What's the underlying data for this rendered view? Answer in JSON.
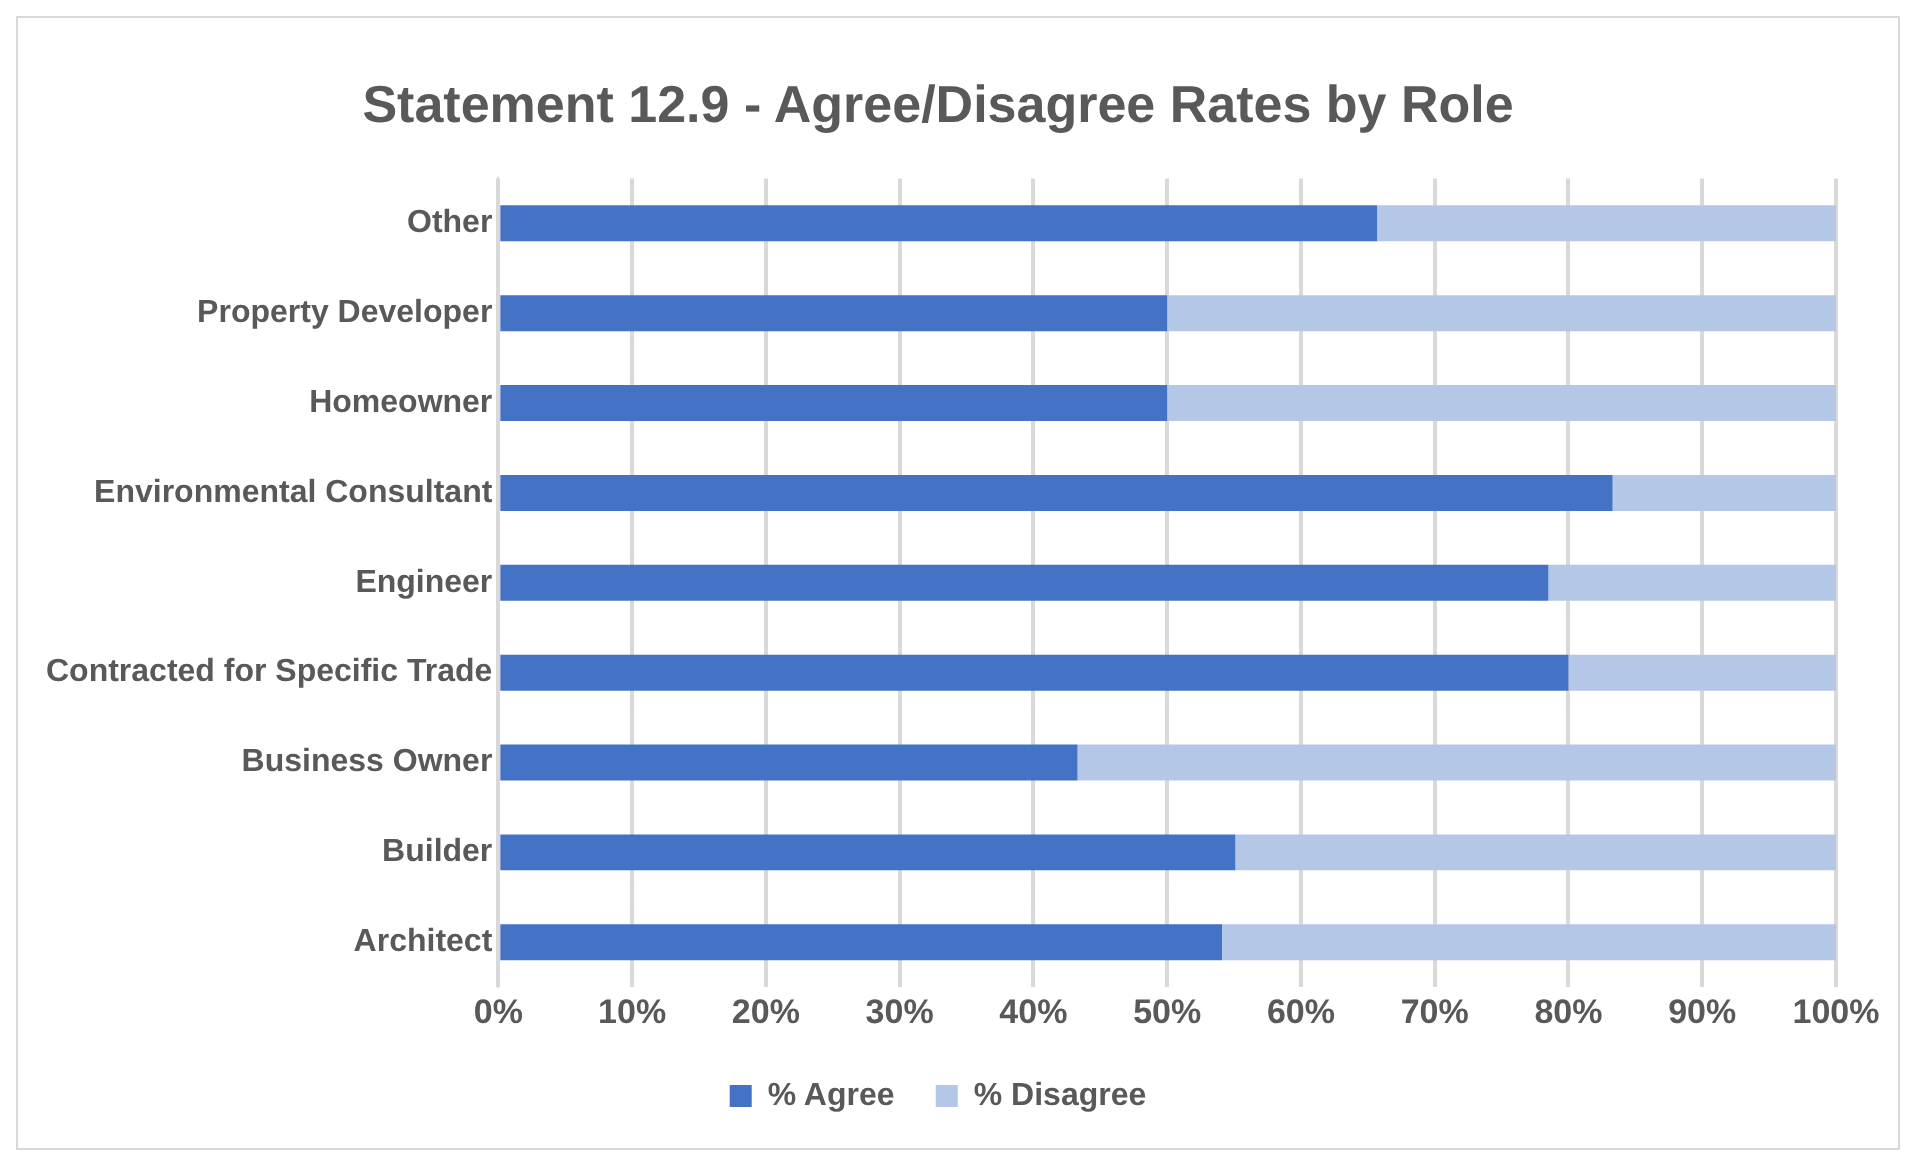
{
  "chart_data": {
    "type": "bar",
    "orientation": "horizontal",
    "stacked": true,
    "title": "Statement 12.9 - Agree/Disagree Rates by Role",
    "categories": [
      "Other",
      "Property Developer",
      "Homeowner",
      "Environmental Consultant",
      "Engineer",
      "Contracted for Specific Trade",
      "Business Owner",
      "Builder",
      "Architect"
    ],
    "series": [
      {
        "name": "% Agree",
        "color": "#4472c4",
        "values": [
          65.7,
          50,
          50,
          83.3,
          78.5,
          80,
          43.3,
          55.1,
          54.1
        ]
      },
      {
        "name": "% Disagree",
        "color": "#b4c7e7",
        "values": [
          34.3,
          50,
          50,
          16.7,
          21.5,
          20,
          56.7,
          44.9,
          45.9
        ]
      }
    ],
    "xlim": [
      0,
      100
    ],
    "xticks": [
      {
        "value": 0,
        "label": "0%"
      },
      {
        "value": 10,
        "label": "10%"
      },
      {
        "value": 20,
        "label": "20%"
      },
      {
        "value": 30,
        "label": "30%"
      },
      {
        "value": 40,
        "label": "40%"
      },
      {
        "value": 50,
        "label": "50%"
      },
      {
        "value": 60,
        "label": "60%"
      },
      {
        "value": 70,
        "label": "70%"
      },
      {
        "value": 80,
        "label": "80%"
      },
      {
        "value": 90,
        "label": "90%"
      },
      {
        "value": 100,
        "label": "100%"
      }
    ],
    "grid": "x",
    "legend": "bottom"
  }
}
